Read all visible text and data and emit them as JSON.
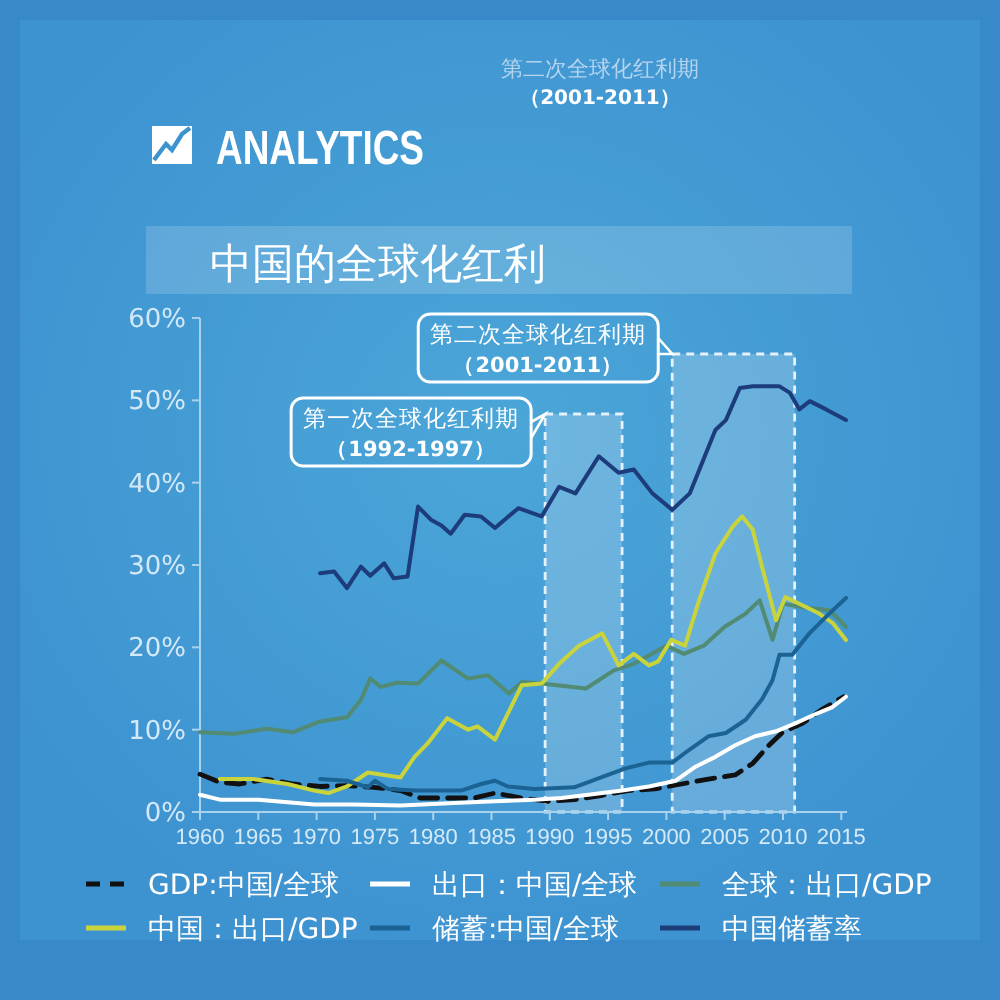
{
  "chart_data": {
    "type": "line",
    "title": "中国的全球化红利",
    "annotations": [
      "ANALYTICS",
      "第二次全球化红利期（2001-2011）"
    ],
    "xlim": [
      1960,
      2015.5
    ],
    "xticks": [
      1960,
      1965,
      1970,
      1975,
      1980,
      1985,
      1990,
      1995,
      2000,
      2005,
      2010,
      2015
    ],
    "ylim": [
      0,
      60
    ],
    "yticks": [
      {
        "value": 0,
        "label": "0%"
      },
      {
        "value": 10,
        "label": "10%"
      },
      {
        "value": 20,
        "label": "20%"
      },
      {
        "value": 30,
        "label": "30%"
      },
      {
        "value": 40,
        "label": "40%"
      },
      {
        "value": 50,
        "label": "50%"
      },
      {
        "value": 60,
        "label": "60%"
      }
    ],
    "legend": "bottom",
    "line_style": "solid",
    "bands": [
      {
        "axis": "x",
        "from": 1989.6,
        "to": 1996.2,
        "label": "第一次全球化红利期（1992-1997）"
      },
      {
        "axis": "x",
        "from": 2000.5,
        "to": 2011,
        "label": "第二次全球化红利期（2001-2011）"
      }
    ],
    "series": [
      {
        "name": "GDP:中国/全球",
        "color": "#111111",
        "line_style": "dashed",
        "x": [
          1960,
          1961.7,
          1963.4,
          1965.7,
          1968,
          1970.3,
          1972.6,
          1974.9,
          1977.2,
          1978.9,
          1981.8,
          1983.5,
          1985.3,
          1987.6,
          1989.9,
          1992.1,
          1994.4,
          1996.7,
          1999,
          2001.3,
          2003.6,
          2005.9,
          2007.4,
          2008.8,
          2009.9,
          2011.7,
          2013.4,
          2015.2
        ],
        "values": [
          4.6,
          3.6,
          3.4,
          4.0,
          3.4,
          3.1,
          3.2,
          3.0,
          2.6,
          1.7,
          1.7,
          1.7,
          2.3,
          1.7,
          1.3,
          1.5,
          2.0,
          2.6,
          2.8,
          3.4,
          4.0,
          4.5,
          5.9,
          8.1,
          9.6,
          10.8,
          12.5,
          14.0
        ]
      },
      {
        "name": "出口：中国/全球",
        "color": "#ffffff",
        "x": [
          1960,
          1961.7,
          1965,
          1969.8,
          1973.2,
          1977.2,
          1981.8,
          1985.3,
          1988.7,
          1991,
          1993.3,
          1996.2,
          1998.5,
          2000.8,
          2002.5,
          2004.2,
          2005.9,
          2007.6,
          2009.4,
          2011.1,
          2012.8,
          2014.2,
          2015.4
        ],
        "values": [
          2.1,
          1.5,
          1.5,
          0.9,
          0.9,
          0.8,
          1.1,
          1.3,
          1.5,
          1.7,
          2.1,
          2.6,
          3.1,
          3.8,
          5.5,
          6.7,
          8.1,
          9.2,
          9.8,
          10.8,
          11.9,
          12.7,
          14.0
        ]
      },
      {
        "name": "全球：出口/GDP",
        "color": "#528b73",
        "x": [
          1960,
          1962.9,
          1965.7,
          1968,
          1970.3,
          1972.6,
          1973.8,
          1974.6,
          1975.5,
          1976.9,
          1978.7,
          1980.7,
          1983,
          1984.7,
          1986.5,
          1987.6,
          1989.3,
          1993.1,
          1995.5,
          1997.2,
          2000,
          2001.5,
          2003.2,
          2005,
          2006.8,
          2008,
          2009.1,
          2010,
          2012,
          2014,
          2015.4
        ],
        "values": [
          9.7,
          9.5,
          10.1,
          9.7,
          11.0,
          11.5,
          13.6,
          16.2,
          15.2,
          15.7,
          15.6,
          18.4,
          16.2,
          16.6,
          14.4,
          15.8,
          15.6,
          15.0,
          17.2,
          18.0,
          20.2,
          19.2,
          20.2,
          22.5,
          24.1,
          25.7,
          20.9,
          25.3,
          24.8,
          24.5,
          22.5
        ]
      },
      {
        "name": "中国：出口/GDP",
        "color": "#c9d43c",
        "x": [
          1961.7,
          1964.6,
          1967.5,
          1969.8,
          1971,
          1972.6,
          1974.4,
          1975.8,
          1977.2,
          1978.4,
          1979.5,
          1981.2,
          1983,
          1983.8,
          1985.3,
          1987.6,
          1989.3,
          1990.8,
          1992.5,
          1994.5,
          1995.9,
          1997.2,
          1998.5,
          1999.3,
          2000.4,
          2001.6,
          2002.8,
          2004.2,
          2005.7,
          2006.5,
          2007.4,
          2008.2,
          2009.4,
          2010.2,
          2011.4,
          2013.1,
          2014.3,
          2015.4
        ],
        "values": [
          4.0,
          4.0,
          3.4,
          2.6,
          2.3,
          3.1,
          4.8,
          4.5,
          4.2,
          6.7,
          8.3,
          11.4,
          10.0,
          10.4,
          8.8,
          15.4,
          15.6,
          18.0,
          20.2,
          21.7,
          17.8,
          19.2,
          17.8,
          18.3,
          20.9,
          20.2,
          25.7,
          31.4,
          34.7,
          35.9,
          34.3,
          29.8,
          23.3,
          26.1,
          25.3,
          24.1,
          22.9,
          20.9
        ]
      },
      {
        "name": "储蓄:中国/全球",
        "color": "#1a6394",
        "x": [
          1970.3,
          1972.6,
          1974.4,
          1975,
          1976.1,
          1978.4,
          1980.7,
          1982.4,
          1984.1,
          1985.3,
          1986.4,
          1988.7,
          1992.1,
          1994.4,
          1996.5,
          1998.5,
          2000.5,
          2001.9,
          2003.6,
          2005.1,
          2006.8,
          2008.2,
          2009.1,
          2009.7,
          2010.8,
          2012.2,
          2013.9,
          2015.4
        ],
        "values": [
          4.0,
          3.8,
          3.0,
          3.8,
          2.8,
          2.6,
          2.6,
          2.6,
          3.4,
          3.8,
          3.1,
          2.8,
          3.0,
          4.2,
          5.3,
          6.0,
          6.0,
          7.5,
          9.2,
          9.6,
          11.2,
          13.7,
          16.0,
          19.1,
          19.1,
          21.6,
          24.0,
          26.0
        ]
      },
      {
        "name": "中国储蓄率",
        "color": "#1d3c7c",
        "x": [
          1970.3,
          1971.5,
          1972.6,
          1973.8,
          1974.6,
          1975.8,
          1976.6,
          1977.8,
          1978.7,
          1979.8,
          1980.7,
          1981.5,
          1982.7,
          1984.1,
          1985.3,
          1987.3,
          1989.3,
          1990.8,
          1992.2,
          1994.2,
          1995.9,
          1997.2,
          1998.8,
          2000.5,
          2002,
          2004.2,
          2005.1,
          2006.3,
          2007.4,
          2009.7,
          2010.6,
          2011.4,
          2012.3,
          2013.7,
          2015.4
        ],
        "values": [
          29.0,
          29.2,
          27.2,
          29.8,
          28.7,
          30.2,
          28.4,
          28.6,
          37.1,
          35.5,
          34.8,
          33.8,
          36.1,
          35.9,
          34.5,
          36.9,
          35.9,
          39.5,
          38.7,
          43.2,
          41.2,
          41.6,
          38.7,
          36.7,
          38.7,
          46.4,
          47.6,
          51.5,
          51.7,
          51.7,
          50.9,
          48.9,
          49.9,
          48.9,
          47.6
        ]
      }
    ]
  }
}
